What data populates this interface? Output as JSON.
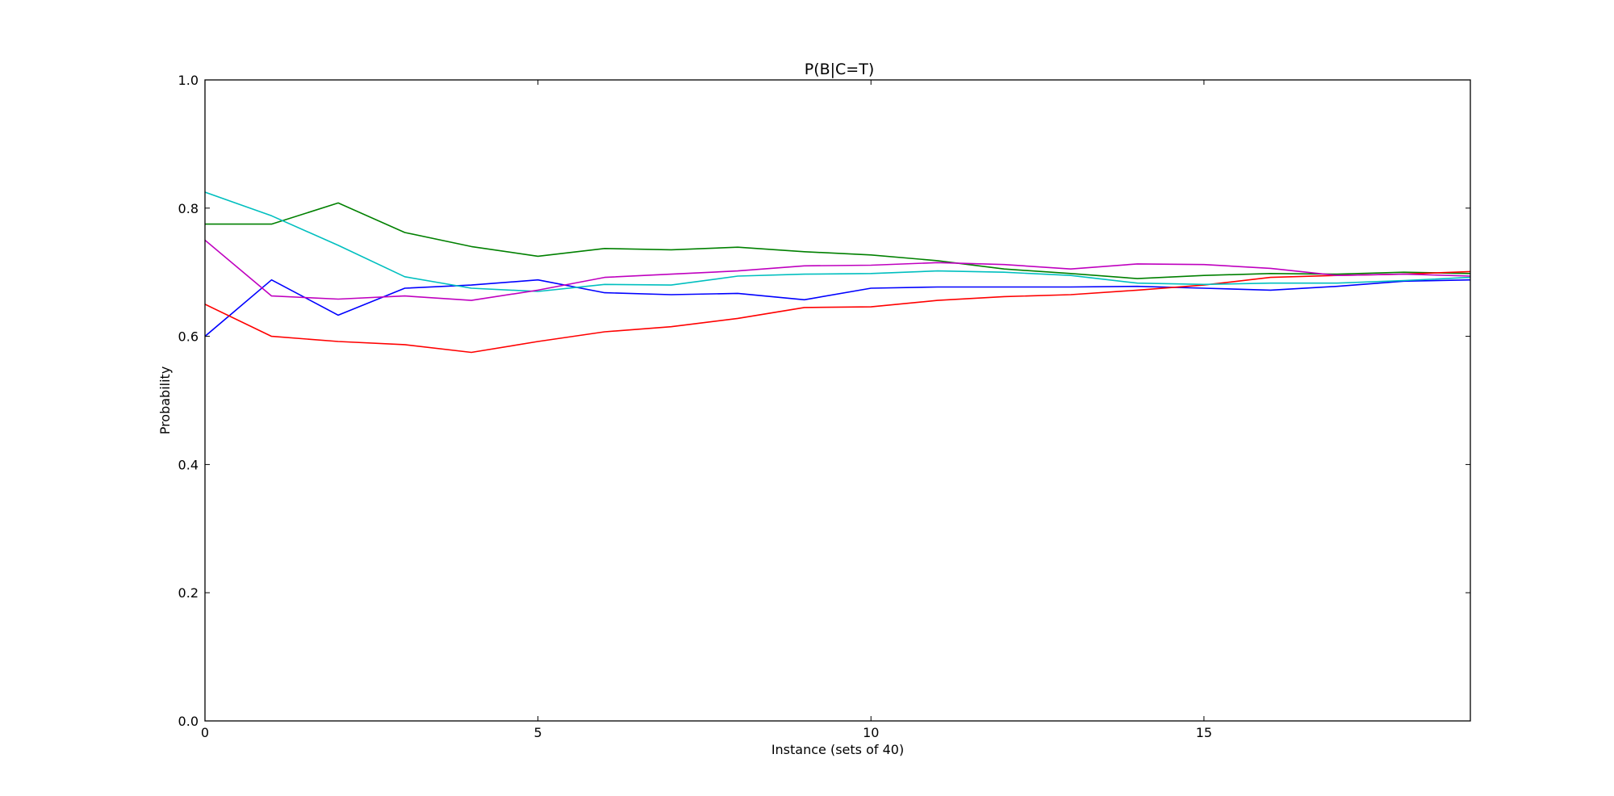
{
  "chart_data": {
    "type": "line",
    "title": "P(B|C=T)",
    "xlabel": "Instance (sets of 40)",
    "ylabel": "Probability",
    "xlim": [
      0,
      19
    ],
    "ylim": [
      0.0,
      1.0
    ],
    "x_ticks": [
      0,
      5,
      10,
      15
    ],
    "x_tick_labels": [
      "0",
      "5",
      "10",
      "15"
    ],
    "y_ticks": [
      0.0,
      0.2,
      0.4,
      0.6,
      0.8,
      1.0
    ],
    "y_tick_labels": [
      "0.0",
      "0.2",
      "0.4",
      "0.6",
      "0.8",
      "1.0"
    ],
    "grid": false,
    "legend": "none",
    "x": [
      0,
      1,
      2,
      3,
      4,
      5,
      6,
      7,
      8,
      9,
      10,
      11,
      12,
      13,
      14,
      15,
      16,
      17,
      18,
      19
    ],
    "series": [
      {
        "color": "#0000ff",
        "values": [
          0.6,
          0.688,
          0.633,
          0.675,
          0.68,
          0.688,
          0.668,
          0.665,
          0.667,
          0.657,
          0.675,
          0.677,
          0.677,
          0.677,
          0.678,
          0.675,
          0.672,
          0.678,
          0.686,
          0.688
        ]
      },
      {
        "color": "#008000",
        "values": [
          0.775,
          0.775,
          0.808,
          0.762,
          0.74,
          0.725,
          0.737,
          0.735,
          0.739,
          0.732,
          0.727,
          0.718,
          0.705,
          0.698,
          0.69,
          0.695,
          0.698,
          0.697,
          0.7,
          0.698
        ]
      },
      {
        "color": "#ff0000",
        "values": [
          0.65,
          0.6,
          0.592,
          0.587,
          0.575,
          0.592,
          0.607,
          0.615,
          0.628,
          0.645,
          0.646,
          0.656,
          0.662,
          0.665,
          0.672,
          0.68,
          0.692,
          0.695,
          0.697,
          0.701
        ]
      },
      {
        "color": "#00bfbf",
        "values": [
          0.825,
          0.788,
          0.742,
          0.693,
          0.675,
          0.67,
          0.681,
          0.68,
          0.694,
          0.697,
          0.698,
          0.702,
          0.7,
          0.695,
          0.683,
          0.681,
          0.683,
          0.683,
          0.687,
          0.692
        ]
      },
      {
        "color": "#bf00bf",
        "values": [
          0.75,
          0.663,
          0.658,
          0.663,
          0.656,
          0.672,
          0.692,
          0.697,
          0.702,
          0.71,
          0.711,
          0.715,
          0.712,
          0.705,
          0.713,
          0.712,
          0.706,
          0.695,
          0.697,
          0.694
        ]
      }
    ]
  }
}
